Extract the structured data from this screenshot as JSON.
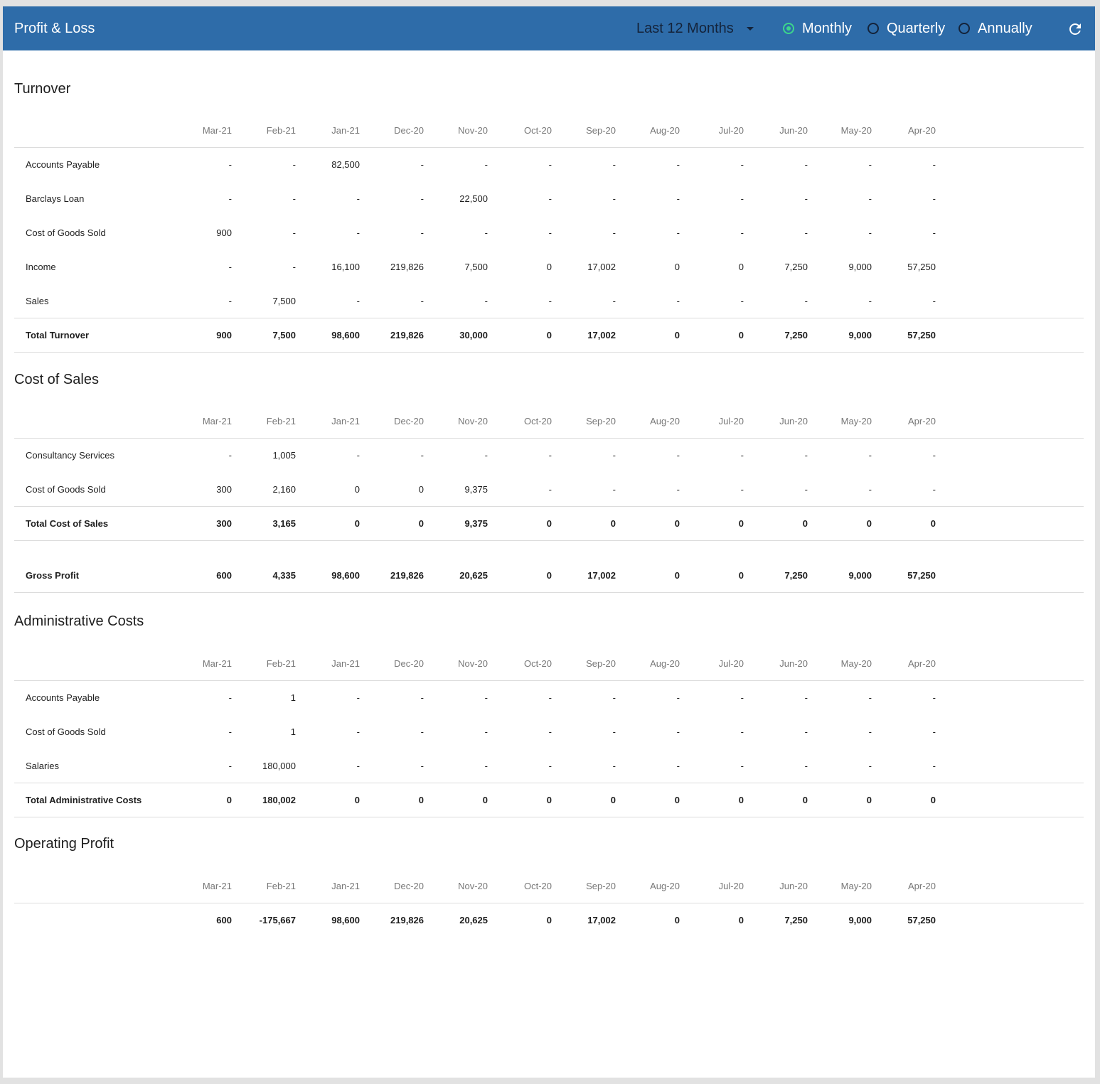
{
  "header": {
    "title": "Profit & Loss",
    "period_label": "Last 12 Months",
    "options": [
      {
        "label": "Monthly",
        "checked": true
      },
      {
        "label": "Quarterly",
        "checked": false
      },
      {
        "label": "Annually",
        "checked": false
      }
    ]
  },
  "months": [
    "Mar-21",
    "Feb-21",
    "Jan-21",
    "Dec-20",
    "Nov-20",
    "Oct-20",
    "Sep-20",
    "Aug-20",
    "Jul-20",
    "Jun-20",
    "May-20",
    "Apr-20"
  ],
  "turnover": {
    "title": "Turnover",
    "rows": [
      {
        "label": "Accounts Payable",
        "values": [
          "-",
          "-",
          "82,500",
          "-",
          "-",
          "-",
          "-",
          "-",
          "-",
          "-",
          "-",
          "-"
        ]
      },
      {
        "label": "Barclays Loan",
        "values": [
          "-",
          "-",
          "-",
          "-",
          "22,500",
          "-",
          "-",
          "-",
          "-",
          "-",
          "-",
          "-"
        ]
      },
      {
        "label": "Cost of Goods Sold",
        "values": [
          "900",
          "-",
          "-",
          "-",
          "-",
          "-",
          "-",
          "-",
          "-",
          "-",
          "-",
          "-"
        ]
      },
      {
        "label": "Income",
        "values": [
          "-",
          "-",
          "16,100",
          "219,826",
          "7,500",
          "0",
          "17,002",
          "0",
          "0",
          "7,250",
          "9,000",
          "57,250"
        ]
      },
      {
        "label": "Sales",
        "values": [
          "-",
          "7,500",
          "-",
          "-",
          "-",
          "-",
          "-",
          "-",
          "-",
          "-",
          "-",
          "-"
        ]
      }
    ],
    "total": {
      "label": "Total Turnover",
      "values": [
        "900",
        "7,500",
        "98,600",
        "219,826",
        "30,000",
        "0",
        "17,002",
        "0",
        "0",
        "7,250",
        "9,000",
        "57,250"
      ]
    }
  },
  "cost_of_sales": {
    "title": "Cost of Sales",
    "rows": [
      {
        "label": "Consultancy Services",
        "values": [
          "-",
          "1,005",
          "-",
          "-",
          "-",
          "-",
          "-",
          "-",
          "-",
          "-",
          "-",
          "-"
        ]
      },
      {
        "label": "Cost of Goods Sold",
        "values": [
          "300",
          "2,160",
          "0",
          "0",
          "9,375",
          "-",
          "-",
          "-",
          "-",
          "-",
          "-",
          "-"
        ]
      }
    ],
    "total": {
      "label": "Total Cost of Sales",
      "values": [
        "300",
        "3,165",
        "0",
        "0",
        "9,375",
        "0",
        "0",
        "0",
        "0",
        "0",
        "0",
        "0"
      ]
    }
  },
  "gross_profit": {
    "label": "Gross Profit",
    "values": [
      "600",
      "4,335",
      "98,600",
      "219,826",
      "20,625",
      "0",
      "17,002",
      "0",
      "0",
      "7,250",
      "9,000",
      "57,250"
    ]
  },
  "admin_costs": {
    "title": "Administrative Costs",
    "rows": [
      {
        "label": "Accounts Payable",
        "values": [
          "-",
          "1",
          "-",
          "-",
          "-",
          "-",
          "-",
          "-",
          "-",
          "-",
          "-",
          "-"
        ]
      },
      {
        "label": "Cost of Goods Sold",
        "values": [
          "-",
          "1",
          "-",
          "-",
          "-",
          "-",
          "-",
          "-",
          "-",
          "-",
          "-",
          "-"
        ]
      },
      {
        "label": "Salaries",
        "values": [
          "-",
          "180,000",
          "-",
          "-",
          "-",
          "-",
          "-",
          "-",
          "-",
          "-",
          "-",
          "-"
        ]
      }
    ],
    "total": {
      "label": "Total Administrative Costs",
      "values": [
        "0",
        "180,002",
        "0",
        "0",
        "0",
        "0",
        "0",
        "0",
        "0",
        "0",
        "0",
        "0"
      ]
    }
  },
  "operating_profit": {
    "title": "Operating Profit",
    "values": [
      "600",
      "-175,667",
      "98,600",
      "219,826",
      "20,625",
      "0",
      "17,002",
      "0",
      "0",
      "7,250",
      "9,000",
      "57,250"
    ]
  }
}
